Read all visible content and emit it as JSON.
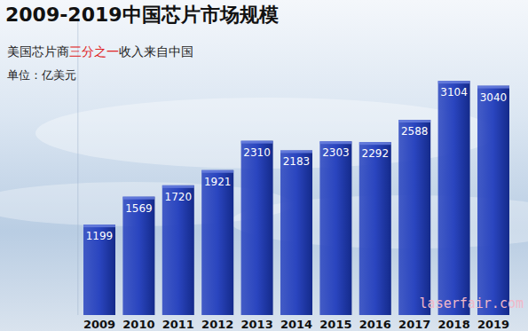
{
  "chart_data": {
    "type": "bar",
    "title": "2009-2019中国芯片市场规模",
    "subtitle": [
      "美国芯片商",
      "三分之一",
      "收入来自中国"
    ],
    "annotations": [
      "单位：亿美元",
      "laserfair.com"
    ],
    "categories": [
      "2009",
      "2010",
      "2011",
      "2012",
      "2013",
      "2014",
      "2015",
      "2016",
      "2017",
      "2018",
      "2019"
    ],
    "values": [
      1199,
      1569,
      1720,
      1921,
      2310,
      2183,
      2303,
      2292,
      2588,
      3104,
      3040
    ],
    "color": "#2a45bf",
    "ylim": [
      0,
      4000
    ],
    "data_labels": true,
    "tick_labels": "x",
    "grid": false
  }
}
